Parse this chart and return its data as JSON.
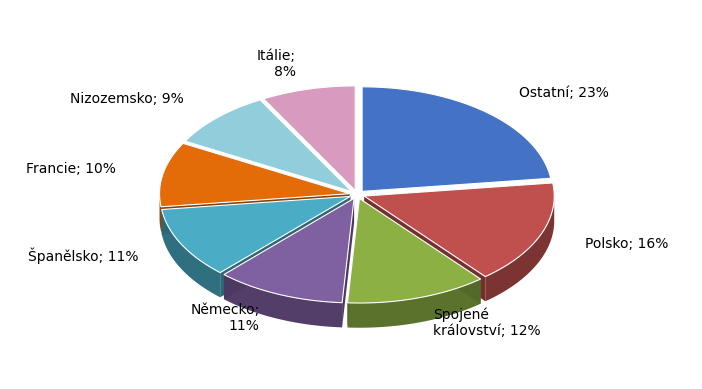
{
  "labels": [
    "Ostatní; 23%",
    "Polsko; 16%",
    "Spojené\nkrálovství; 12%",
    "Německo;\n11%",
    "Španělsko; 11%",
    "Francie; 10%",
    "Nizozemsko; 9%",
    "Itálie;\n8%"
  ],
  "values": [
    23,
    16,
    12,
    11,
    11,
    10,
    9,
    8
  ],
  "colors": [
    "#4472C4",
    "#C0504D",
    "#8DB045",
    "#7F60A0",
    "#4BACC6",
    "#E36C09",
    "#92CDDC",
    "#D89ABF"
  ],
  "explode": [
    0.04,
    0.04,
    0.04,
    0.04,
    0.04,
    0.04,
    0.04,
    0.04
  ],
  "startangle": 90,
  "figsize": [
    7.02,
    3.89
  ],
  "dpi": 100,
  "label_fontsize": 10,
  "background_color": "#FFFFFF",
  "depth": 0.13,
  "yscale": 0.55,
  "label_dist": 1.25
}
